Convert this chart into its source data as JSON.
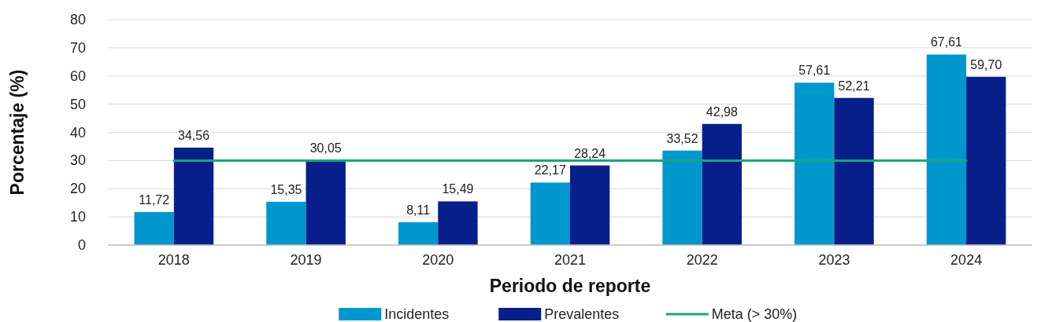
{
  "chart_data": {
    "type": "bar",
    "xlabel": "Periodo de reporte",
    "ylabel": "Porcentaje (%)",
    "categories": [
      "2018",
      "2019",
      "2020",
      "2021",
      "2022",
      "2023",
      "2024"
    ],
    "series": [
      {
        "name": "Incidentes",
        "color": "#0097ce",
        "values": [
          11.72,
          15.35,
          8.11,
          22.17,
          33.52,
          57.61,
          67.61
        ],
        "value_labels": [
          "11,72",
          "15,35",
          "8,11",
          "22,17",
          "33,52",
          "57,61",
          "67,61"
        ]
      },
      {
        "name": "Prevalentes",
        "color": "#061f8a",
        "values": [
          34.56,
          30.05,
          15.49,
          28.24,
          42.98,
          52.21,
          59.7
        ],
        "value_labels": [
          "34,56",
          "30,05",
          "15,49",
          "28,24",
          "42,98",
          "52,21",
          "59,70"
        ]
      },
      {
        "name": "Meta (> 30%)",
        "type": "line",
        "color": "#1aa57b",
        "values": [
          30,
          30,
          30,
          30,
          30,
          30,
          30
        ]
      }
    ],
    "ylim": [
      0,
      80
    ],
    "yticks": [
      0,
      10,
      20,
      30,
      40,
      50,
      60,
      70,
      80
    ],
    "grid": "y",
    "legend": "bottom"
  }
}
